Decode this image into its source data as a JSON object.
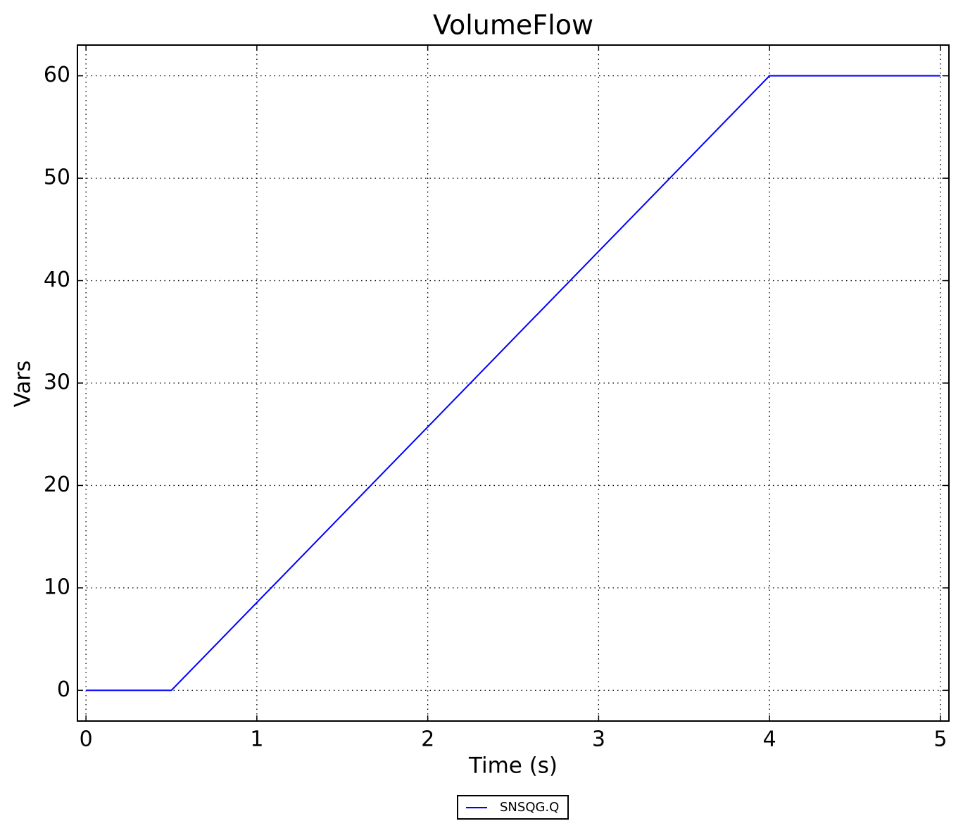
{
  "chart_data": {
    "type": "line",
    "title": "VolumeFlow",
    "x_label": "Time (s)",
    "y_label": "Vars",
    "x": [
      0,
      0.5,
      4,
      5
    ],
    "series": [
      {
        "name": "SNSQG.Q",
        "color": "#0000ff",
        "values": [
          0,
          0,
          60,
          60
        ]
      }
    ],
    "xlim": [
      -0.05,
      5.05
    ],
    "xticks": [
      0,
      1,
      2,
      3,
      4,
      5
    ],
    "ylim": [
      -3,
      63
    ],
    "yticks": [
      0,
      10,
      20,
      30,
      40,
      50,
      60
    ],
    "grid": true,
    "legend": "below"
  }
}
